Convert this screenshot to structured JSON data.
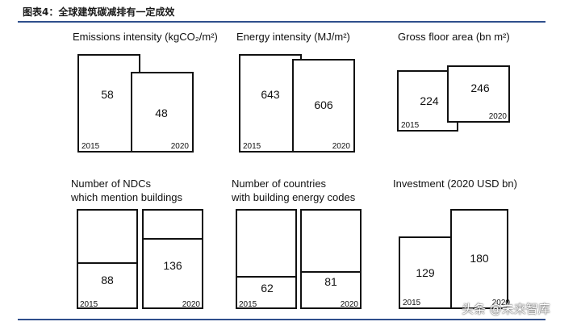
{
  "caption": "图表4：全球建筑碳减排有一定成效",
  "watermark": "头条 @未来智库",
  "chart_data": [
    {
      "type": "area",
      "title": "Emissions intensity (kgCO₂/m²)",
      "title_lines": [
        "Emissions intensity (kgCO₂/m²)"
      ],
      "layout": "overlap",
      "categories": [
        "2015",
        "2020"
      ],
      "values": [
        58,
        48
      ],
      "value_labels": [
        "58",
        "48"
      ]
    },
    {
      "type": "area",
      "title": "Energy intensity (MJ/m²)",
      "title_lines": [
        "Energy intensity (MJ/m²)"
      ],
      "layout": "overlap",
      "categories": [
        "2015",
        "2020"
      ],
      "values": [
        643,
        606
      ],
      "value_labels": [
        "643",
        "606"
      ]
    },
    {
      "type": "area",
      "title": "Gross floor area (bn m²)",
      "title_lines": [
        "Gross floor area (bn m²)"
      ],
      "layout": "overlap",
      "categories": [
        "2015",
        "2020"
      ],
      "values": [
        224,
        246
      ],
      "value_labels": [
        "224",
        "246"
      ]
    },
    {
      "type": "bar",
      "title": "Number of NDCs which mention buildings",
      "title_lines": [
        "Number of NDCs",
        "which mention buildings"
      ],
      "layout": "side",
      "categories": [
        "2015",
        "2020"
      ],
      "values": [
        88,
        136
      ],
      "value_labels": [
        "88",
        "136"
      ]
    },
    {
      "type": "bar",
      "title": "Number of countries with building energy codes",
      "title_lines": [
        "Number of countries",
        "with building energy codes"
      ],
      "layout": "side",
      "categories": [
        "2015",
        "2020"
      ],
      "values": [
        62,
        81
      ],
      "value_labels": [
        "62",
        "81"
      ]
    },
    {
      "type": "area",
      "title": "Investment (2020 USD bn)",
      "title_lines": [
        "Investment (2020 USD bn)"
      ],
      "layout": "overlap",
      "categories": [
        "2015",
        "2020"
      ],
      "values": [
        129,
        180
      ],
      "value_labels": [
        "129",
        "180"
      ]
    }
  ]
}
